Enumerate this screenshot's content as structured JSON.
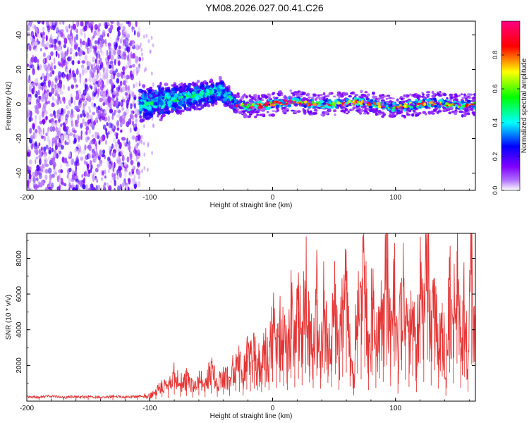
{
  "title": "YM08.2026.027.00.41.C26",
  "colors": {
    "snr_line": "#e53535",
    "axis": "#000000"
  },
  "chart_data": [
    {
      "type": "heatmap",
      "title": "YM08.2026.027.00.41.C26",
      "xlabel": "Height of straight line (km)",
      "ylabel": "Frequency (Hz)",
      "xlim": [
        -200,
        165
      ],
      "ylim": [
        -50,
        48
      ],
      "x_ticks": [
        -200,
        -100,
        0,
        100
      ],
      "y_ticks": [
        -40,
        -20,
        0,
        20,
        40
      ],
      "colorbar": {
        "label": "Normalized spectral amplitude",
        "range": [
          0,
          1
        ],
        "ticks": [
          0.0,
          0.2,
          0.4,
          0.6,
          0.8
        ],
        "colormap": [
          "#ffffff",
          "#8000ff",
          "#0000ff",
          "#00ffff",
          "#00ff00",
          "#ffff00",
          "#ff0000",
          "#ff0080"
        ]
      },
      "regions": [
        {
          "name": "noise",
          "x": [
            -200,
            -108
          ],
          "freq": [
            -50,
            48
          ],
          "amplitude": 0.2
        },
        {
          "name": "transition",
          "x": [
            -108,
            -30
          ],
          "freq_center": [
            0,
            8
          ],
          "amplitude": 0.5
        },
        {
          "name": "carrier",
          "x": [
            -30,
            165
          ],
          "freq_center": 0,
          "amplitude": 0.9
        }
      ]
    },
    {
      "type": "line",
      "xlabel": "Height of straight line (km)",
      "ylabel": "SNR (10 * v/v)",
      "xlim": [
        -200,
        165
      ],
      "ylim": [
        0,
        9400
      ],
      "x_ticks": [
        -200,
        -100,
        0,
        100
      ],
      "y_ticks": [
        2000,
        4000,
        6000,
        8000
      ],
      "series": [
        {
          "name": "SNR",
          "x": [
            -200,
            -190,
            -180,
            -170,
            -160,
            -150,
            -140,
            -130,
            -120,
            -110,
            -100,
            -95,
            -90,
            -85,
            -80,
            -75,
            -70,
            -65,
            -60,
            -55,
            -50,
            -45,
            -40,
            -35,
            -30,
            -27,
            -24,
            -21,
            -18,
            -15,
            -12,
            -9,
            -6,
            -3,
            0,
            3,
            6,
            9,
            12,
            15,
            18,
            21,
            24,
            27,
            30,
            33,
            36,
            39,
            42,
            45,
            48,
            51,
            54,
            57,
            60,
            63,
            66,
            69,
            72,
            75,
            78,
            81,
            84,
            87,
            90,
            93,
            96,
            99,
            102,
            105,
            108,
            111,
            114,
            117,
            120,
            123,
            126,
            129,
            132,
            135,
            138,
            141,
            144,
            147,
            150,
            153,
            156,
            159,
            162,
            165
          ],
          "values": [
            250,
            230,
            280,
            210,
            260,
            240,
            220,
            260,
            230,
            270,
            300,
            450,
            900,
            700,
            1500,
            1000,
            1200,
            800,
            1300,
            900,
            1700,
            1000,
            1500,
            1200,
            2300,
            2100,
            1300,
            2600,
            2200,
            2800,
            2400,
            2000,
            3100,
            2500,
            4300,
            3000,
            4200,
            3400,
            2500,
            5200,
            3100,
            5000,
            3600,
            6300,
            4200,
            3000,
            5700,
            2800,
            6200,
            4100,
            3200,
            6000,
            2500,
            5400,
            6400,
            3300,
            1300,
            6200,
            4900,
            7600,
            2500,
            5800,
            3000,
            5100,
            4300,
            8000,
            3400,
            7800,
            1700,
            6900,
            4800,
            3200,
            5600,
            2000,
            8400,
            4300,
            9300,
            3500,
            6900,
            2800,
            5500,
            1200,
            6400,
            4000,
            8400,
            3000,
            5400,
            2100,
            8200,
            3700
          ]
        }
      ]
    }
  ]
}
